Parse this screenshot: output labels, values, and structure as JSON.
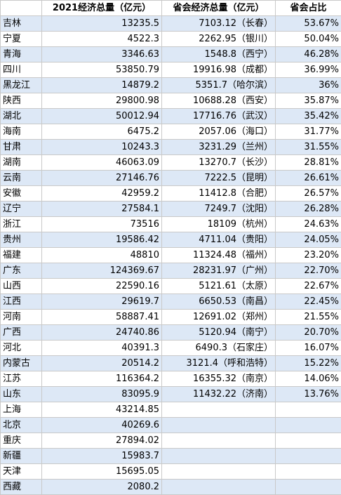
{
  "header": {
    "region": "",
    "gdp": "2021经济总量（亿元）",
    "capital_gdp": "省会经济总量（亿元）",
    "share": "省会占比"
  },
  "rows": [
    {
      "region": "吉林",
      "gdp": "13235.5",
      "capital": "7103.12（长春）",
      "share": "53.67%"
    },
    {
      "region": "宁夏",
      "gdp": "4522.3",
      "capital": "2262.95（银川）",
      "share": "50.04%"
    },
    {
      "region": "青海",
      "gdp": "3346.63",
      "capital": "1548.8（西宁）",
      "share": "46.28%"
    },
    {
      "region": "四川",
      "gdp": "53850.79",
      "capital": "19916.98（成都）",
      "share": "36.99%"
    },
    {
      "region": "黑龙江",
      "gdp": "14879.2",
      "capital": "5351.7（哈尔滨）",
      "share": "36%"
    },
    {
      "region": "陕西",
      "gdp": "29800.98",
      "capital": "10688.28（西安）",
      "share": "35.87%"
    },
    {
      "region": "湖北",
      "gdp": "50012.94",
      "capital": "17716.76（武汉）",
      "share": "35.42%"
    },
    {
      "region": "海南",
      "gdp": "6475.2",
      "capital": "2057.06（海口）",
      "share": "31.77%"
    },
    {
      "region": "甘肃",
      "gdp": "10243.3",
      "capital": "3231.29（兰州）",
      "share": "31.55%"
    },
    {
      "region": "湖南",
      "gdp": "46063.09",
      "capital": "13270.7（长沙）",
      "share": "28.81%"
    },
    {
      "region": "云南",
      "gdp": "27146.76",
      "capital": "7222.5（昆明）",
      "share": "26.61%"
    },
    {
      "region": "安徽",
      "gdp": "42959.2",
      "capital": "11412.8（合肥）",
      "share": "26.57%"
    },
    {
      "region": "辽宁",
      "gdp": "27584.1",
      "capital": "7249.7（沈阳）",
      "share": "26.28%"
    },
    {
      "region": "浙江",
      "gdp": "73516",
      "capital": "18109（杭州）",
      "share": "24.63%"
    },
    {
      "region": "贵州",
      "gdp": "19586.42",
      "capital": "4711.04（贵阳）",
      "share": "24.05%"
    },
    {
      "region": "福建",
      "gdp": "48810",
      "capital": "11324.48（福州）",
      "share": "23.20%"
    },
    {
      "region": "广东",
      "gdp": "124369.67",
      "capital": "28231.97（广州）",
      "share": "22.70%"
    },
    {
      "region": "山西",
      "gdp": "22590.16",
      "capital": "5121.61（太原）",
      "share": "22.67%"
    },
    {
      "region": "江西",
      "gdp": "29619.7",
      "capital": "6650.53（南昌）",
      "share": "22.45%"
    },
    {
      "region": "河南",
      "gdp": "58887.41",
      "capital": "12691.02（郑州）",
      "share": "21.55%"
    },
    {
      "region": "广西",
      "gdp": "24740.86",
      "capital": "5120.94（南宁）",
      "share": "20.70%"
    },
    {
      "region": "河北",
      "gdp": "40391.3",
      "capital": "6490.3（石家庄）",
      "share": "16.07%"
    },
    {
      "region": "内蒙古",
      "gdp": "20514.2",
      "capital": "3121.4（呼和浩特）",
      "share": "15.22%"
    },
    {
      "region": "江苏",
      "gdp": "116364.2",
      "capital": "16355.32（南京）",
      "share": "14.06%"
    },
    {
      "region": "山东",
      "gdp": "83095.9",
      "capital": "11432.22（济南）",
      "share": "13.76%"
    },
    {
      "region": "上海",
      "gdp": "43214.85",
      "capital": "",
      "share": ""
    },
    {
      "region": "北京",
      "gdp": "40269.6",
      "capital": "",
      "share": ""
    },
    {
      "region": "重庆",
      "gdp": "27894.02",
      "capital": "",
      "share": ""
    },
    {
      "region": "新疆",
      "gdp": "15983.7",
      "capital": "",
      "share": ""
    },
    {
      "region": "天津",
      "gdp": "15695.05",
      "capital": "",
      "share": ""
    },
    {
      "region": "西藏",
      "gdp": "2080.2",
      "capital": "",
      "share": ""
    }
  ]
}
